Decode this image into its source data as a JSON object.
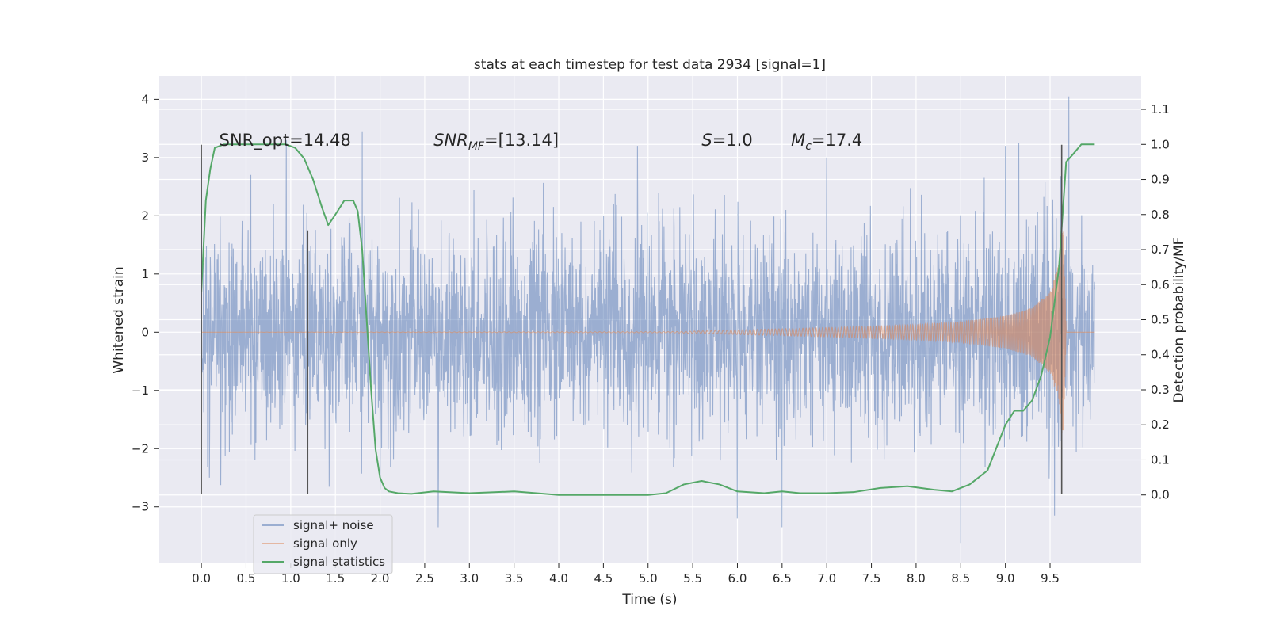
{
  "chart_data": {
    "type": "line",
    "title": "stats at each timestep for test data 2934 [signal=1]",
    "xlabel": "Time (s)",
    "ylabel": "Whitened strain",
    "y2label": "Detection probability/MF",
    "xlim": [
      -0.48,
      10.52
    ],
    "ylim": [
      -3.97,
      4.4
    ],
    "y2lim": [
      -0.195,
      1.195
    ],
    "x_ticks": [
      0.0,
      0.5,
      1.0,
      1.5,
      2.0,
      2.5,
      3.0,
      3.5,
      4.0,
      4.5,
      5.0,
      5.5,
      6.0,
      6.5,
      7.0,
      7.5,
      8.0,
      8.5,
      9.0,
      9.5
    ],
    "x_tick_labels": [
      "0.0",
      "0.5",
      "1.0",
      "1.5",
      "2.0",
      "2.5",
      "3.0",
      "3.5",
      "4.0",
      "4.5",
      "5.0",
      "5.5",
      "6.0",
      "6.5",
      "7.0",
      "7.5",
      "8.0",
      "8.5",
      "9.0",
      "9.5"
    ],
    "y_ticks": [
      -3,
      -2,
      -1,
      0,
      1,
      2,
      3,
      4
    ],
    "y_tick_labels": [
      "−3",
      "−2",
      "−1",
      "0",
      "1",
      "2",
      "3",
      "4"
    ],
    "y2_ticks": [
      0.0,
      0.1,
      0.2,
      0.3,
      0.4,
      0.5,
      0.6,
      0.7,
      0.8,
      0.9,
      1.0,
      1.1
    ],
    "y2_tick_labels": [
      "0.0",
      "0.1",
      "0.2",
      "0.3",
      "0.4",
      "0.5",
      "0.6",
      "0.7",
      "0.8",
      "0.9",
      "1.0",
      "1.1"
    ],
    "grid": true,
    "legend_position": "lower-left",
    "annotations": [
      {
        "label": "SNR_opt=14.48",
        "x": 0.2,
        "y": 3.2
      },
      {
        "label": "SNR",
        "subscript": "MF",
        "suffix": "=[13.14]",
        "italic": true,
        "x": 2.6,
        "y": 3.2
      },
      {
        "label": "S",
        "suffix": "=1.0",
        "italic": true,
        "x": 5.6,
        "y": 3.2
      },
      {
        "label": "M",
        "subscript": "c",
        "suffix": "=17.4",
        "italic": true,
        "x": 6.6,
        "y": 3.2
      }
    ],
    "vertical_markers": [
      {
        "x": 0.0,
        "y0": -2.78,
        "y1": 3.22
      },
      {
        "x": 1.19,
        "y0": -2.78,
        "y1": 1.75
      },
      {
        "x": 9.63,
        "y0": -2.78,
        "y1": 3.22
      }
    ],
    "series": [
      {
        "name": "signal+ noise",
        "color": "#4c72b0",
        "axis": "left",
        "style": "noise",
        "x_range": [
          0.0,
          10.0
        ],
        "std": 0.85,
        "peak_x": [
          0.0,
          1.8,
          0.95,
          2.0,
          2.65,
          4.88,
          6.0,
          6.5,
          7.0,
          8.5,
          9.0,
          9.15,
          9.55,
          9.71
        ],
        "peak_y": [
          3.0,
          3.45,
          3.3,
          -2.7,
          -3.35,
          3.2,
          -3.2,
          -3.35,
          3.0,
          -3.62,
          3.2,
          3.25,
          -3.15,
          4.05
        ],
        "envelope_x": [
          0.0,
          5.5,
          8.0,
          9.0,
          9.4,
          9.63,
          9.65,
          10.0
        ],
        "envelope_y": [
          1.3,
          1.3,
          1.35,
          1.4,
          1.6,
          2.0,
          1.3,
          1.3
        ]
      },
      {
        "name": "signal only",
        "color": "#dd8452",
        "axis": "left",
        "style": "chirp",
        "x": [
          0.0,
          5.3,
          6.0,
          7.0,
          8.0,
          8.5,
          9.0,
          9.3,
          9.5,
          9.6,
          9.65,
          9.68,
          10.0
        ],
        "amplitude": [
          0.0,
          0.01,
          0.04,
          0.08,
          0.13,
          0.18,
          0.28,
          0.42,
          0.7,
          1.2,
          2.1,
          0.0,
          0.0
        ],
        "freq_x": [
          0.0,
          5.3,
          7.0,
          8.5,
          9.2,
          9.5,
          9.65
        ],
        "freq_hz": [
          15,
          20,
          28,
          40,
          60,
          90,
          150
        ]
      },
      {
        "name": "signal statistics",
        "color": "#55a868",
        "axis": "right",
        "x": [
          0.0,
          0.05,
          0.1,
          0.15,
          0.25,
          0.5,
          0.8,
          0.95,
          1.05,
          1.15,
          1.25,
          1.35,
          1.42,
          1.5,
          1.6,
          1.7,
          1.75,
          1.8,
          1.85,
          1.9,
          1.95,
          2.0,
          2.05,
          2.1,
          2.2,
          2.35,
          2.6,
          3.0,
          3.5,
          4.0,
          4.5,
          5.0,
          5.2,
          5.4,
          5.6,
          5.8,
          6.0,
          6.3,
          6.5,
          6.7,
          7.0,
          7.3,
          7.6,
          7.9,
          8.2,
          8.4,
          8.6,
          8.8,
          9.0,
          9.1,
          9.2,
          9.3,
          9.4,
          9.5,
          9.6,
          9.68,
          9.75,
          9.85,
          10.0
        ],
        "y": [
          0.58,
          0.84,
          0.93,
          0.99,
          1.0,
          1.0,
          1.0,
          1.0,
          0.99,
          0.96,
          0.9,
          0.82,
          0.77,
          0.8,
          0.84,
          0.84,
          0.81,
          0.7,
          0.5,
          0.3,
          0.13,
          0.05,
          0.02,
          0.01,
          0.005,
          0.003,
          0.01,
          0.005,
          0.01,
          0.0,
          0.0,
          0.0,
          0.005,
          0.03,
          0.04,
          0.03,
          0.01,
          0.005,
          0.01,
          0.005,
          0.005,
          0.008,
          0.02,
          0.025,
          0.015,
          0.01,
          0.03,
          0.07,
          0.2,
          0.24,
          0.24,
          0.27,
          0.34,
          0.45,
          0.65,
          0.95,
          0.97,
          1.0,
          1.0
        ]
      }
    ]
  }
}
